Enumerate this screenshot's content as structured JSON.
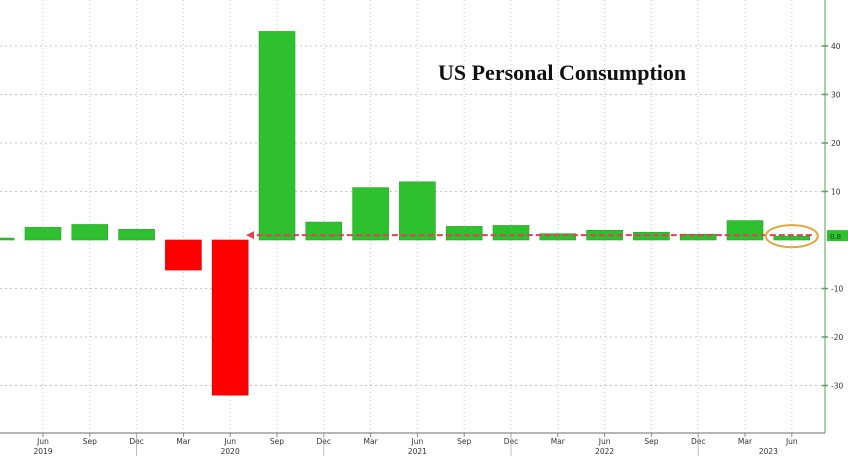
{
  "chart_data": {
    "type": "bar",
    "title": "US Personal Consumption",
    "xlabel": "",
    "ylabel": "",
    "ylim": [
      -36,
      50
    ],
    "y_ticks": [
      40,
      30,
      20,
      10,
      -10,
      -20,
      -30
    ],
    "y_axis_position": "right",
    "grid": true,
    "categories": [
      "Mar 2019",
      "Jun 2019",
      "Sep 2019",
      "Dec 2019",
      "Mar 2020",
      "Jun 2020",
      "Sep 2020",
      "Dec 2020",
      "Mar 2021",
      "Jun 2021",
      "Sep 2021",
      "Dec 2021",
      "Mar 2022",
      "Jun 2022",
      "Sep 2022",
      "Dec 2022",
      "Mar 2023",
      "Jun 2023"
    ],
    "values": [
      0.4,
      2.6,
      3.2,
      2.2,
      -6.2,
      -32.0,
      43.0,
      3.7,
      10.8,
      12.0,
      2.8,
      3.0,
      1.3,
      2.0,
      1.6,
      1.2,
      4.0,
      0.8
    ],
    "x_tick_labels": [
      "Jun",
      "Sep",
      "Dec",
      "Mar",
      "Jun",
      "Sep",
      "Dec",
      "Mar",
      "Jun",
      "Sep",
      "Dec",
      "Mar",
      "Jun",
      "Sep",
      "Dec",
      "Mar",
      "Jun"
    ],
    "year_labels": [
      {
        "label": "2019",
        "under": "Jun"
      },
      {
        "label": "2020",
        "under": "Jun"
      },
      {
        "label": "2021",
        "under": "Jun"
      },
      {
        "label": "2022",
        "under": "Jun"
      },
      {
        "label": "2023",
        "under": "Mar-Jun"
      }
    ],
    "last_value_label": "0.8",
    "annotations": [
      {
        "type": "dashed-arrow-line",
        "color": "#e0405a",
        "from": "Jun 2023",
        "to": "Sep 2020",
        "level": 0.8
      },
      {
        "type": "ellipse-highlight",
        "color": "#e0a840",
        "around": "Jun 2023"
      }
    ],
    "colors": {
      "positive": "#2ec02e",
      "negative": "#ff0000",
      "grid": "#c8c8c8",
      "axis": "#5aa05a",
      "arrow": "#e0405a",
      "highlight": "#e0a840"
    }
  }
}
